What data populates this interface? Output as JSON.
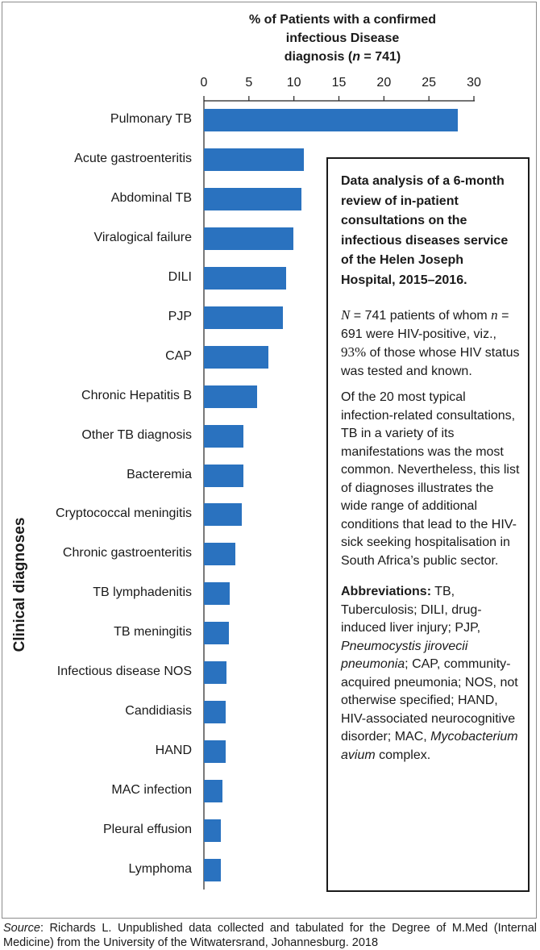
{
  "chart_data": {
    "type": "bar",
    "orientation": "horizontal",
    "title_lines": [
      "% of Patients with a confirmed",
      "infectious Disease"
    ],
    "title_line3_prefix": "diagnosis (",
    "title_line3_n": "n",
    "title_line3_suffix": " = 741)",
    "xlabel": "% of Patients with a confirmed infectious Disease diagnosis (n = 741)",
    "ylabel": "Clinical diagnoses",
    "xlim": [
      0,
      30
    ],
    "xticks": [
      "0",
      "5",
      "10",
      "15",
      "20",
      "25",
      "30"
    ],
    "xtick_values": [
      0,
      5,
      10,
      15,
      20,
      25,
      30
    ],
    "categories": [
      "Pulmonary TB",
      "Acute gastroenteritis",
      "Abdominal TB",
      "Viralogical failure",
      "DILI",
      "PJP",
      "CAP",
      "Chronic Hepatitis B",
      "Other TB diagnosis",
      "Bacteremia",
      "Cryptococcal meningitis",
      "Chronic gastroenteritis",
      "TB lymphadenitis",
      "TB meningitis",
      "Infectious disease NOS",
      "Candidiasis",
      "HAND",
      "MAC infection",
      "Pleural effusion",
      "Lymphoma"
    ],
    "values": [
      28.2,
      11.1,
      10.8,
      9.9,
      9.1,
      8.8,
      7.2,
      5.9,
      4.4,
      4.4,
      4.2,
      3.5,
      2.9,
      2.8,
      2.5,
      2.4,
      2.4,
      2.1,
      1.9,
      1.9
    ],
    "bar_color": "#2a72bf"
  },
  "note": {
    "title": "Data analysis of a 6-month review of in-patient consultations on the infectious diseases service of the Helen Joseph Hospital, 2015–2016.",
    "p1_N": "N",
    "p1_a": " = 741 patients of whom ",
    "p1_n": "n",
    "p1_b": " = 691 were HIV-positive, viz., ",
    "p1_pct": "93%",
    "p1_c": "  of those whose HIV status was tested and known.",
    "p2": "Of the 20 most typical infection-related consultations, TB in a variety of its manifestations was the most common. Nevertheless, this list of diagnoses illustrates the wide range of additional conditions that lead to the HIV-sick seeking hospitalisation in South Africa’s public sector.",
    "abbr_label": "Abbreviations:",
    "abbr_a": " TB, Tuberculosis; DILI, drug-induced liver injury; PJP, ",
    "abbr_pjp": "Pneumocystis jirovecii pneumonia",
    "abbr_b": "; CAP, community-acquired pneumonia; NOS, not otherwise specified; HAND, HIV-associated neurocognitive disorder; MAC, ",
    "abbr_mac": "Mycobacterium avium",
    "abbr_c": " complex."
  },
  "source": {
    "label": "Source",
    "text": ": Richards L. Unpublished data collected and tabulated for the Degree of M.Med (Internal Medicine) from the University of the Witwatersrand, Johannesburg. 2018"
  }
}
